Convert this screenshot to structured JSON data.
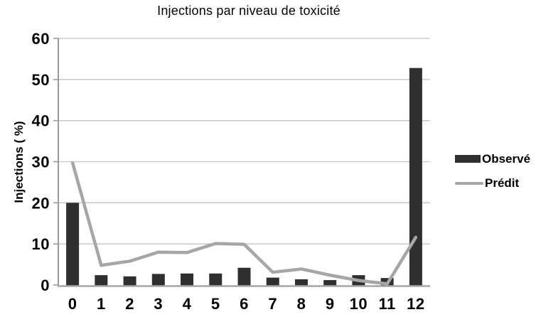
{
  "title": "Injections par niveau de toxicité",
  "chart_data": {
    "type": "bar",
    "subtype": "bar-with-line-overlay",
    "title": "Injections par niveau de toxicité",
    "categories": [
      "0",
      "1",
      "2",
      "3",
      "4",
      "5",
      "6",
      "7",
      "8",
      "9",
      "10",
      "11",
      "12"
    ],
    "series": [
      {
        "name": "Observé",
        "type": "bar",
        "color": "#2f2f2f",
        "values": [
          20,
          2.4,
          2.1,
          2.7,
          2.8,
          2.8,
          4.2,
          1.8,
          1.4,
          1.2,
          2.4,
          1.7,
          52.8
        ]
      },
      {
        "name": "Prédit",
        "type": "line",
        "color": "#a6a6a6",
        "values": [
          29.7,
          4.8,
          5.8,
          8.0,
          7.9,
          10.1,
          9.9,
          3.1,
          3.9,
          2.4,
          1.1,
          0.3,
          11.6
        ]
      }
    ],
    "xlabel": "",
    "ylabel": "Injections ( %)",
    "ylim": [
      0,
      60
    ],
    "yticks": [
      0,
      10,
      20,
      30,
      40,
      50,
      60
    ],
    "grid": true,
    "legend_position": "right"
  },
  "colors": {
    "background": "#ffffff",
    "gridline": "#c4c4c4",
    "y_axis": "#9a9a9a",
    "x_axis": "#a6a6a6",
    "text": "#000000"
  }
}
